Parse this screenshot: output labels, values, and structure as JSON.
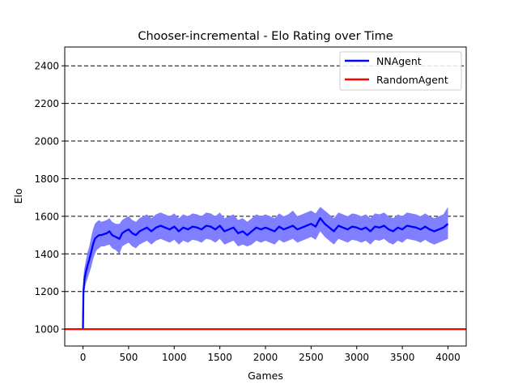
{
  "chart_data": {
    "type": "line",
    "title": "Chooser-incremental - Elo Rating over Time",
    "xlabel": "Games",
    "ylabel": "Elo",
    "xlim": [
      -200,
      4200
    ],
    "ylim": [
      910,
      2500
    ],
    "xticks": [
      0,
      500,
      1000,
      1500,
      2000,
      2500,
      3000,
      3500,
      4000
    ],
    "yticks": [
      1000,
      1200,
      1400,
      1600,
      1800,
      2000,
      2200,
      2400
    ],
    "grid": "horizontal-dashed",
    "legend_position": "top-right",
    "series": [
      {
        "name": "NNAgent",
        "color": "#0000ff",
        "band_color": "#7f7fff",
        "x": [
          0,
          5,
          15,
          30,
          50,
          70,
          90,
          110,
          130,
          150,
          175,
          200,
          230,
          260,
          290,
          320,
          360,
          400,
          430,
          460,
          500,
          540,
          580,
          620,
          660,
          700,
          750,
          800,
          850,
          900,
          950,
          1000,
          1050,
          1100,
          1150,
          1200,
          1250,
          1300,
          1350,
          1400,
          1450,
          1500,
          1550,
          1600,
          1650,
          1700,
          1750,
          1800,
          1850,
          1900,
          1950,
          2000,
          2050,
          2100,
          2150,
          2200,
          2250,
          2300,
          2350,
          2400,
          2450,
          2500,
          2550,
          2600,
          2650,
          2700,
          2750,
          2800,
          2850,
          2900,
          2950,
          3000,
          3050,
          3100,
          3150,
          3200,
          3250,
          3300,
          3350,
          3400,
          3450,
          3500,
          3550,
          3600,
          3650,
          3700,
          3750,
          3800,
          3850,
          3900,
          3950,
          4000
        ],
        "values": [
          1000,
          1200,
          1260,
          1300,
          1340,
          1370,
          1410,
          1450,
          1480,
          1490,
          1500,
          1500,
          1505,
          1510,
          1520,
          1500,
          1490,
          1480,
          1510,
          1520,
          1530,
          1510,
          1500,
          1520,
          1530,
          1540,
          1520,
          1540,
          1550,
          1540,
          1530,
          1545,
          1520,
          1540,
          1530,
          1545,
          1540,
          1530,
          1550,
          1545,
          1530,
          1550,
          1520,
          1530,
          1540,
          1510,
          1520,
          1500,
          1520,
          1540,
          1530,
          1540,
          1530,
          1520,
          1545,
          1530,
          1540,
          1550,
          1530,
          1540,
          1550,
          1560,
          1545,
          1590,
          1560,
          1540,
          1520,
          1550,
          1540,
          1530,
          1545,
          1540,
          1530,
          1540,
          1520,
          1545,
          1540,
          1550,
          1530,
          1520,
          1540,
          1530,
          1550,
          1545,
          1540,
          1530,
          1545,
          1530,
          1520,
          1530,
          1540,
          1560
        ],
        "lower": [
          1000,
          1120,
          1200,
          1240,
          1270,
          1300,
          1330,
          1370,
          1400,
          1420,
          1430,
          1440,
          1440,
          1445,
          1450,
          1430,
          1420,
          1400,
          1440,
          1450,
          1460,
          1440,
          1430,
          1450,
          1460,
          1470,
          1450,
          1470,
          1480,
          1470,
          1460,
          1475,
          1450,
          1470,
          1460,
          1475,
          1470,
          1460,
          1480,
          1475,
          1460,
          1480,
          1450,
          1460,
          1470,
          1440,
          1450,
          1440,
          1450,
          1470,
          1460,
          1470,
          1460,
          1450,
          1475,
          1460,
          1470,
          1480,
          1460,
          1470,
          1480,
          1490,
          1475,
          1520,
          1490,
          1470,
          1450,
          1480,
          1470,
          1460,
          1475,
          1470,
          1460,
          1470,
          1450,
          1475,
          1470,
          1480,
          1460,
          1450,
          1470,
          1460,
          1480,
          1475,
          1470,
          1460,
          1475,
          1460,
          1450,
          1460,
          1470,
          1480
        ],
        "upper": [
          1000,
          1280,
          1320,
          1360,
          1410,
          1440,
          1490,
          1530,
          1560,
          1570,
          1580,
          1570,
          1575,
          1580,
          1590,
          1570,
          1560,
          1560,
          1580,
          1590,
          1600,
          1580,
          1570,
          1590,
          1600,
          1610,
          1590,
          1610,
          1620,
          1610,
          1600,
          1615,
          1590,
          1610,
          1600,
          1615,
          1610,
          1600,
          1620,
          1615,
          1600,
          1620,
          1590,
          1600,
          1610,
          1580,
          1590,
          1570,
          1590,
          1610,
          1600,
          1610,
          1600,
          1590,
          1615,
          1600,
          1610,
          1630,
          1600,
          1610,
          1620,
          1630,
          1615,
          1650,
          1630,
          1610,
          1590,
          1620,
          1610,
          1600,
          1615,
          1610,
          1600,
          1610,
          1590,
          1615,
          1610,
          1620,
          1600,
          1590,
          1610,
          1600,
          1620,
          1615,
          1610,
          1600,
          1615,
          1600,
          1590,
          1600,
          1610,
          1650
        ]
      },
      {
        "name": "RandomAgent",
        "color": "#ff0000",
        "x": [
          -200,
          4200
        ],
        "values": [
          1000,
          1000
        ]
      }
    ]
  }
}
